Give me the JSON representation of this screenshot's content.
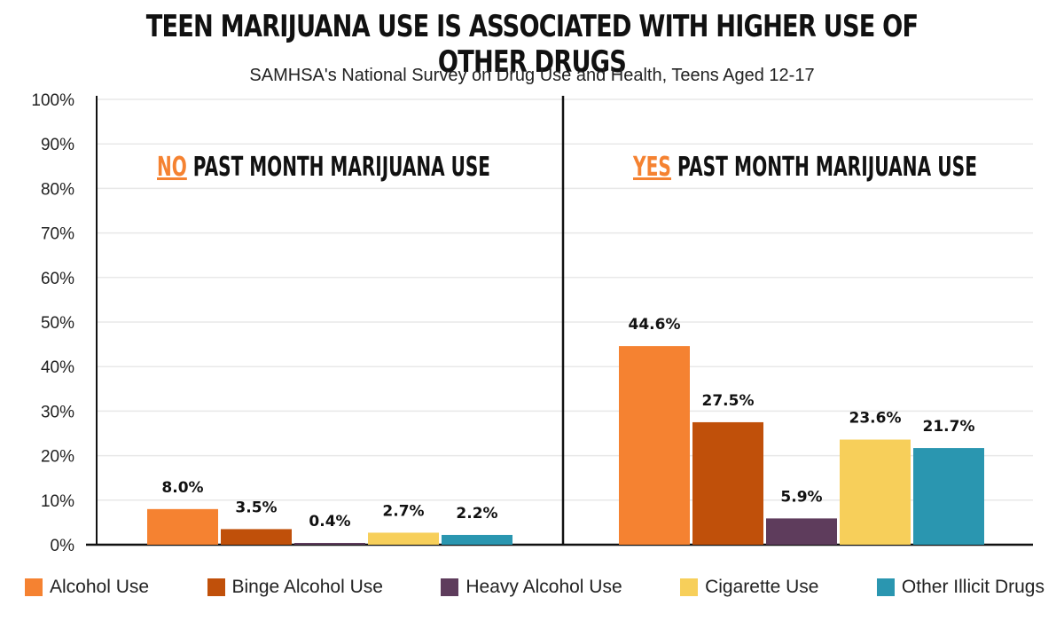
{
  "chart_data": {
    "type": "bar",
    "title": "TEEN MARIJUANA USE IS ASSOCIATED WITH HIGHER USE OF OTHER DRUGS",
    "subtitle": "SAMHSA's National Survey on Drug Use and Health, Teens Aged 12-17",
    "ylim": [
      0,
      100
    ],
    "yticks": [
      "0%",
      "10%",
      "20%",
      "30%",
      "40%",
      "50%",
      "60%",
      "70%",
      "80%",
      "90%",
      "100%"
    ],
    "categories": [
      "Alcohol Use",
      "Binge Alcohol Use",
      "Heavy Alcohol Use",
      "Cigarette Use",
      "Other Illicit Drugs"
    ],
    "colors": [
      "#f58231",
      "#c0500a",
      "#5e3c5c",
      "#f7cf5a",
      "#2a96b0"
    ],
    "groups": [
      {
        "highlight": "NO",
        "label": " PAST MONTH MARIJUANA USE",
        "values": [
          8.0,
          3.5,
          0.4,
          2.7,
          2.2
        ],
        "labels": [
          "8.0%",
          "3.5%",
          "0.4%",
          "2.7%",
          "2.2%"
        ]
      },
      {
        "highlight": "YES",
        "label": " PAST MONTH MARIJUANA USE",
        "values": [
          44.6,
          27.5,
          5.9,
          23.6,
          21.7
        ],
        "labels": [
          "44.6%",
          "27.5%",
          "5.9%",
          "23.6%",
          "21.7%"
        ]
      }
    ],
    "legend_position": "bottom"
  }
}
